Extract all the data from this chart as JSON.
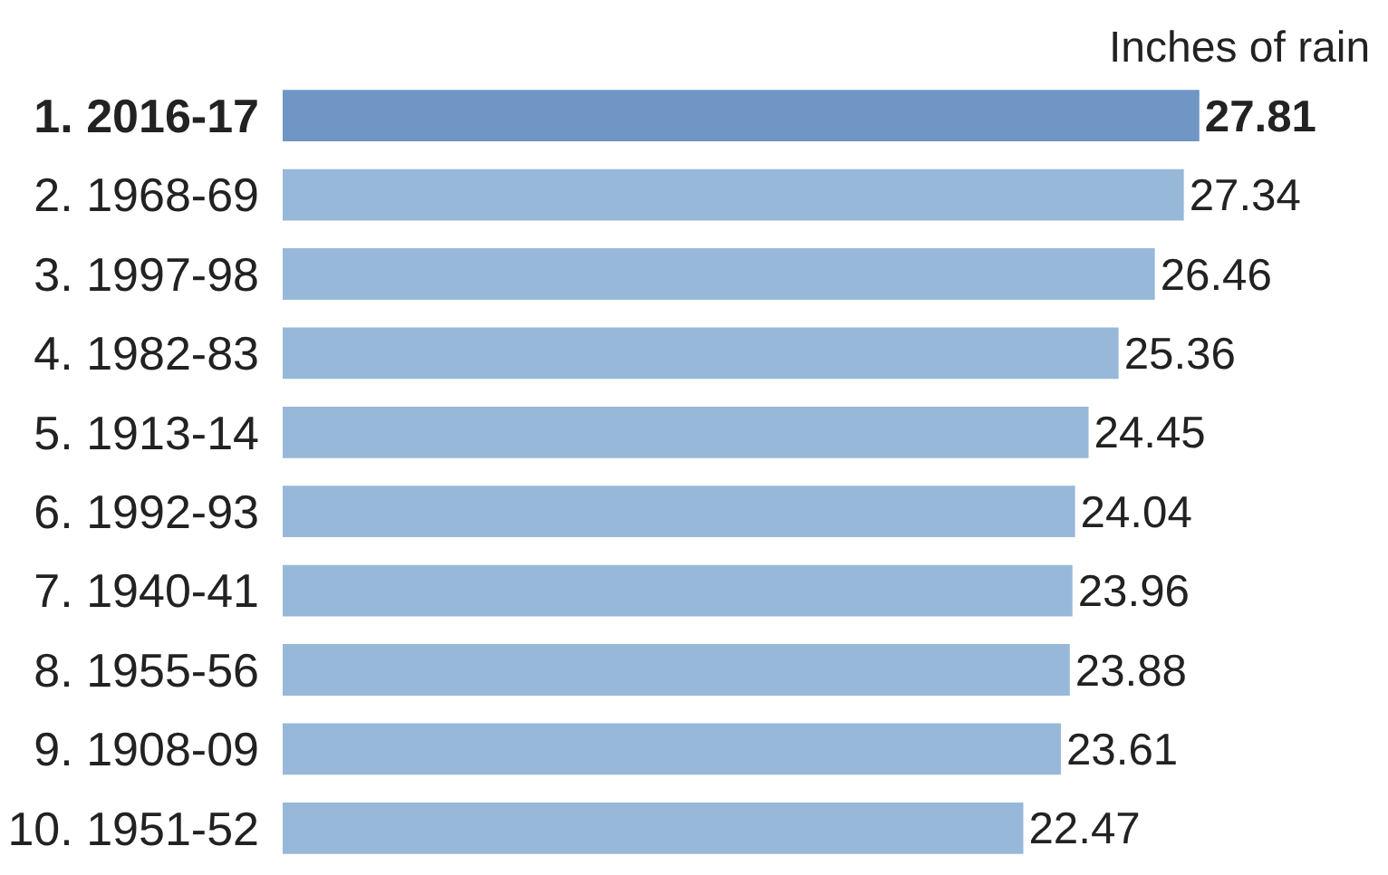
{
  "chart_data": {
    "type": "bar",
    "orientation": "horizontal",
    "xlabel": "Inches of rain",
    "categories": [
      "1. 2016-17",
      "2. 1968-69",
      "3. 1997-98",
      "4. 1982-83",
      "5. 1913-14",
      "6. 1992-93",
      "7. 1940-41",
      "8. 1955-56",
      "9. 1908-09",
      "10. 1951-52"
    ],
    "values": [
      27.81,
      27.34,
      26.46,
      25.36,
      24.45,
      24.04,
      23.96,
      23.88,
      23.61,
      22.47
    ],
    "colors": [
      "#6f96c4",
      "#97b8d9",
      "#97b8d9",
      "#97b8d9",
      "#97b8d9",
      "#97b8d9",
      "#97b8d9",
      "#97b8d9",
      "#97b8d9",
      "#97b8d9"
    ],
    "data_labels": true
  }
}
